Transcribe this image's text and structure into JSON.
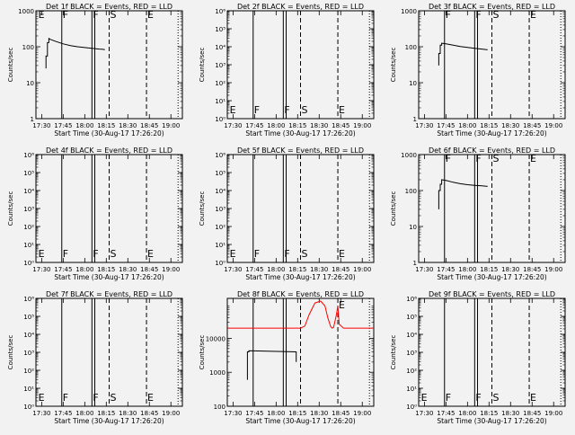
{
  "chart_data": [
    {
      "id": 1,
      "title": "Det 1f BLACK = Events, RED = LLD",
      "ylabel": "Counts/sec",
      "xlabel": "Start Time (30-Aug-17 17:26:20)",
      "xlim": [
        "17:26",
        "19:08"
      ],
      "x_ticks": [
        "17:30",
        "17:45",
        "18:00",
        "18:15",
        "18:30",
        "18:45",
        "19:00"
      ],
      "y_scale": "log",
      "y_ticks": [
        "1",
        "10",
        "100",
        "1000"
      ],
      "ylim": [
        1,
        1000
      ],
      "vlines": {
        "solid": [
          "17:44",
          "18:05",
          "18:07"
        ],
        "dashed": [
          "18:17",
          "18:43"
        ],
        "dotted": [
          "19:05"
        ]
      },
      "markers": [
        {
          "label": "E",
          "x": "17:27"
        },
        {
          "label": "F",
          "x": "17:44"
        },
        {
          "label": "F",
          "x": "18:05"
        },
        {
          "label": "S",
          "x": "18:17"
        },
        {
          "label": "E",
          "x": "18:43"
        }
      ],
      "type": "line",
      "series": [
        {
          "color": "#000000",
          "x": [
            "17:33",
            "17:33",
            "17:34",
            "17:34",
            "17:35",
            "17:35",
            "17:36",
            "17:40",
            "17:45",
            "17:50",
            "17:55",
            "18:00",
            "18:05",
            "18:10",
            "18:12",
            "18:14"
          ],
          "y": [
            25,
            55,
            55,
            130,
            130,
            170,
            160,
            140,
            120,
            108,
            100,
            95,
            90,
            86,
            85,
            83
          ]
        }
      ]
    },
    {
      "id": 2,
      "title": "Det 2f BLACK = Events, RED = LLD",
      "ylabel": "Counts/sec",
      "xlabel": "Start Time (30-Aug-17 17:26:20)",
      "xlim": [
        "17:26",
        "19:08"
      ],
      "x_ticks": [
        "17:30",
        "17:45",
        "18:00",
        "18:15",
        "18:30",
        "18:45",
        "19:00"
      ],
      "y_scale": "log",
      "y_ticks": [
        "10⁰",
        "10¹",
        "10²",
        "10³",
        "10⁴",
        "10⁵",
        "10⁶"
      ],
      "ylim": [
        1,
        1000000
      ],
      "vlines": {
        "solid": [
          "17:44",
          "18:05",
          "18:07"
        ],
        "dashed": [
          "18:17",
          "18:43"
        ],
        "dotted": [
          "19:05"
        ]
      },
      "markers": [
        {
          "label": "E",
          "x": "17:27"
        },
        {
          "label": "F",
          "x": "17:44"
        },
        {
          "label": "F",
          "x": "18:05"
        },
        {
          "label": "S",
          "x": "18:17"
        },
        {
          "label": "E",
          "x": "18:43"
        }
      ],
      "type": "line",
      "series": []
    },
    {
      "id": 3,
      "title": "Det 3f BLACK = Events, RED = LLD",
      "ylabel": "Counts/sec",
      "xlabel": "Start Time (30-Aug-17 17:26:20)",
      "xlim": [
        "17:26",
        "19:08"
      ],
      "x_ticks": [
        "17:30",
        "17:45",
        "18:00",
        "18:15",
        "18:30",
        "18:45",
        "19:00"
      ],
      "y_scale": "log",
      "y_ticks": [
        "1",
        "10",
        "100",
        "1000"
      ],
      "ylim": [
        1,
        1000
      ],
      "vlines": {
        "solid": [
          "17:44",
          "18:05",
          "18:07"
        ],
        "dashed": [
          "18:17",
          "18:43"
        ],
        "dotted": [
          "19:05"
        ]
      },
      "markers": [
        {
          "label": "F",
          "x": "17:44"
        },
        {
          "label": "F",
          "x": "18:05"
        },
        {
          "label": "S",
          "x": "18:17"
        },
        {
          "label": "E",
          "x": "18:43"
        }
      ],
      "type": "line",
      "series": [
        {
          "color": "#000000",
          "x": [
            "17:40",
            "17:40",
            "17:41",
            "17:41",
            "17:42",
            "17:42",
            "17:45",
            "17:50",
            "17:55",
            "18:00",
            "18:05",
            "18:10",
            "18:14"
          ],
          "y": [
            30,
            65,
            65,
            110,
            110,
            125,
            120,
            110,
            102,
            96,
            90,
            86,
            82
          ]
        }
      ]
    },
    {
      "id": 4,
      "title": "Det 4f BLACK = Events, RED = LLD",
      "ylabel": "Counts/sec",
      "xlabel": "Start Time (30-Aug-17 17:26:20)",
      "xlim": [
        "17:26",
        "19:08"
      ],
      "x_ticks": [
        "17:30",
        "17:45",
        "18:00",
        "18:15",
        "18:30",
        "18:45",
        "19:00"
      ],
      "y_scale": "log",
      "y_ticks": [
        "10⁰",
        "10¹",
        "10²",
        "10³",
        "10⁴",
        "10⁵",
        "10⁶"
      ],
      "ylim": [
        1,
        1000000
      ],
      "vlines": {
        "solid": [
          "17:44",
          "18:05",
          "18:07"
        ],
        "dashed": [
          "18:17",
          "18:43"
        ],
        "dotted": [
          "19:05"
        ]
      },
      "markers": [
        {
          "label": "E",
          "x": "17:27"
        },
        {
          "label": "F",
          "x": "17:44"
        },
        {
          "label": "F",
          "x": "18:05"
        },
        {
          "label": "S",
          "x": "18:17"
        },
        {
          "label": "E",
          "x": "18:43"
        }
      ],
      "type": "line",
      "series": []
    },
    {
      "id": 5,
      "title": "Det 5f BLACK = Events, RED = LLD",
      "ylabel": "Counts/sec",
      "xlabel": "Start Time (30-Aug-17 17:26:20)",
      "xlim": [
        "17:26",
        "19:08"
      ],
      "x_ticks": [
        "17:30",
        "17:45",
        "18:00",
        "18:15",
        "18:30",
        "18:45",
        "19:00"
      ],
      "y_scale": "log",
      "y_ticks": [
        "10⁰",
        "10¹",
        "10²",
        "10³",
        "10⁴",
        "10⁵",
        "10⁶"
      ],
      "ylim": [
        1,
        1000000
      ],
      "vlines": {
        "solid": [
          "17:44",
          "18:05",
          "18:07"
        ],
        "dashed": [
          "18:17",
          "18:43"
        ],
        "dotted": [
          "19:05"
        ]
      },
      "markers": [
        {
          "label": "E",
          "x": "17:27"
        },
        {
          "label": "F",
          "x": "17:44"
        },
        {
          "label": "F",
          "x": "18:05"
        },
        {
          "label": "S",
          "x": "18:17"
        },
        {
          "label": "E",
          "x": "18:43"
        }
      ],
      "type": "line",
      "series": []
    },
    {
      "id": 6,
      "title": "Det 6f BLACK = Events, RED = LLD",
      "ylabel": "Counts/sec",
      "xlabel": "Start Time (30-Aug-17 17:26:20)",
      "xlim": [
        "17:26",
        "19:08"
      ],
      "x_ticks": [
        "17:30",
        "17:45",
        "18:00",
        "18:15",
        "18:30",
        "18:45",
        "19:00"
      ],
      "y_scale": "log",
      "y_ticks": [
        "1",
        "10",
        "100",
        "1000"
      ],
      "ylim": [
        1,
        1000
      ],
      "vlines": {
        "solid": [
          "17:44",
          "18:05",
          "18:07"
        ],
        "dashed": [
          "18:17",
          "18:43"
        ],
        "dotted": [
          "19:05"
        ]
      },
      "markers": [
        {
          "label": "F",
          "x": "17:44"
        },
        {
          "label": "F",
          "x": "18:05"
        },
        {
          "label": "S",
          "x": "18:17"
        },
        {
          "label": "E",
          "x": "18:43"
        }
      ],
      "type": "line",
      "series": [
        {
          "color": "#000000",
          "x": [
            "17:40",
            "17:40",
            "17:41",
            "17:41",
            "17:42",
            "17:42",
            "17:45",
            "17:50",
            "17:55",
            "18:00",
            "18:05",
            "18:10",
            "18:14"
          ],
          "y": [
            30,
            100,
            100,
            150,
            150,
            200,
            190,
            170,
            155,
            145,
            140,
            135,
            130
          ]
        }
      ]
    },
    {
      "id": 7,
      "title": "Det 7f BLACK = Events, RED = LLD",
      "ylabel": "Counts/sec",
      "xlabel": "Start Time (30-Aug-17 17:26:20)",
      "xlim": [
        "17:26",
        "19:08"
      ],
      "x_ticks": [
        "17:30",
        "17:45",
        "18:00",
        "18:15",
        "18:30",
        "18:45",
        "19:00"
      ],
      "y_scale": "log",
      "y_ticks": [
        "10⁰",
        "10¹",
        "10²",
        "10³",
        "10⁴",
        "10⁵",
        "10⁶"
      ],
      "ylim": [
        1,
        1000000
      ],
      "vlines": {
        "solid": [
          "17:44",
          "18:05",
          "18:07"
        ],
        "dashed": [
          "18:17",
          "18:43"
        ],
        "dotted": [
          "19:05"
        ]
      },
      "markers": [
        {
          "label": "E",
          "x": "17:27"
        },
        {
          "label": "F",
          "x": "17:44"
        },
        {
          "label": "F",
          "x": "18:05"
        },
        {
          "label": "S",
          "x": "18:17"
        },
        {
          "label": "E",
          "x": "18:43"
        }
      ],
      "type": "line",
      "series": []
    },
    {
      "id": 8,
      "title": "Det 8f BLACK = Events, RED = LLD",
      "ylabel": "Counts/sec",
      "xlabel": "Start Time (30-Aug-17 17:26:20)",
      "xlim": [
        "17:26",
        "19:08"
      ],
      "x_ticks": [
        "17:30",
        "17:45",
        "18:00",
        "18:15",
        "18:30",
        "18:45",
        "19:00"
      ],
      "y_scale": "log",
      "y_ticks": [
        "100",
        "1000",
        "10000"
      ],
      "ylim": [
        10,
        15000
      ],
      "vlines": {
        "solid": [
          "17:44",
          "18:05",
          "18:07"
        ],
        "dashed": [
          "18:17",
          "18:43"
        ],
        "dotted": [
          "19:05"
        ]
      },
      "markers": [
        {
          "label": "E",
          "x": "18:43"
        }
      ],
      "type": "line",
      "series": [
        {
          "color": "#000000",
          "x": [
            "17:40",
            "17:40",
            "17:41",
            "17:41",
            "18:14",
            "18:14"
          ],
          "y": [
            60,
            400,
            400,
            430,
            400,
            200
          ]
        },
        {
          "color": "#ff0000",
          "x": [
            "17:26",
            "18:17",
            "18:20",
            "18:23",
            "18:27",
            "18:31",
            "18:34",
            "18:36",
            "18:38",
            "18:39",
            "18:40",
            "18:42",
            "18:43",
            "18:44",
            "18:47",
            "19:08"
          ],
          "y": [
            2000,
            2000,
            2300,
            5000,
            11000,
            12500,
            9000,
            4000,
            2200,
            2000,
            2100,
            5000,
            9000,
            2600,
            2000,
            2000
          ]
        }
      ]
    },
    {
      "id": 9,
      "title": "Det 9f BLACK = Events, RED = LLD",
      "ylabel": "Counts/sec",
      "xlabel": "Start Time (30-Aug-17 17:26:20)",
      "xlim": [
        "17:26",
        "19:08"
      ],
      "x_ticks": [
        "17:30",
        "17:45",
        "18:00",
        "18:15",
        "18:30",
        "18:45",
        "19:00"
      ],
      "y_scale": "log",
      "y_ticks": [
        "10⁰",
        "10¹",
        "10²",
        "10³",
        "10⁴",
        "10⁵",
        "10⁶"
      ],
      "ylim": [
        1,
        1000000
      ],
      "vlines": {
        "solid": [
          "17:44",
          "18:05",
          "18:07"
        ],
        "dashed": [
          "18:17",
          "18:43"
        ],
        "dotted": [
          "19:05"
        ]
      },
      "markers": [
        {
          "label": "E",
          "x": "17:27"
        },
        {
          "label": "F",
          "x": "17:44"
        },
        {
          "label": "F",
          "x": "18:05"
        },
        {
          "label": "S",
          "x": "18:17"
        },
        {
          "label": "E",
          "x": "18:43"
        }
      ],
      "type": "line",
      "series": []
    }
  ]
}
